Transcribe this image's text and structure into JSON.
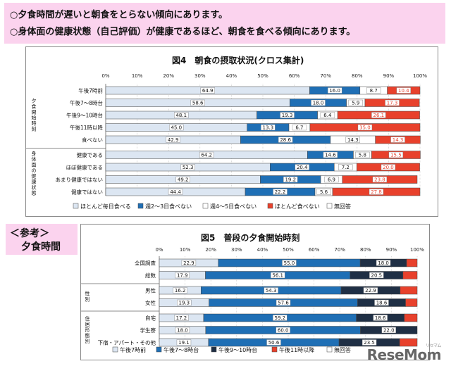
{
  "header": {
    "line1": "○夕食時間が遅いと朝食をとらない傾向にあります。",
    "line2": "○身体面の健康状態（自己評価）が健康であるほど、朝食を食べる傾向にあります。"
  },
  "reference": {
    "line1": "＜参考＞",
    "line2": "夕食時間"
  },
  "watermark": "ReseMom",
  "chart_data": [
    {
      "type": "bar",
      "orientation": "horizontal-stacked-100",
      "title": "図4　朝食の摂取状況(クロス集計)",
      "xlim": [
        0,
        100
      ],
      "xticks": [
        "0%",
        "10%",
        "20%",
        "30%",
        "40%",
        "50%",
        "60%",
        "70%",
        "80%",
        "90%",
        "100%"
      ],
      "groups": [
        {
          "label": "夕食開始時刻",
          "rows": [
            0,
            1,
            2,
            3,
            4
          ]
        },
        {
          "label": "身体面の健康状態",
          "rows": [
            5,
            6,
            7,
            8
          ]
        }
      ],
      "categories": [
        "午後7時前",
        "午後7～8時台",
        "午後9～10時台",
        "午後11時以降",
        "食べない",
        "健康である",
        "ほぼ健康である",
        "あまり健康ではない",
        "健康ではない"
      ],
      "series": [
        {
          "name": "ほとんど毎日食べる",
          "color": "#dce6f2",
          "values": [
            64.9,
            58.6,
            48.1,
            45.0,
            42.9,
            64.2,
            52.3,
            49.2,
            44.4
          ]
        },
        {
          "name": "週2～3日食べない",
          "color": "#1f6fb5",
          "values": [
            16.0,
            18.0,
            19.3,
            13.3,
            28.6,
            14.6,
            20.4,
            19.2,
            22.2
          ]
        },
        {
          "name": "週4～5日食べない",
          "color": "#ffffff",
          "values": [
            8.7,
            5.9,
            6.4,
            6.7,
            14.3,
            5.8,
            7.2,
            6.9,
            5.6
          ]
        },
        {
          "name": "ほとんど食べない",
          "color": "#e8412c",
          "values": [
            10.4,
            17.3,
            26.1,
            35.0,
            14.3,
            15.5,
            20.0,
            23.8,
            27.8
          ]
        },
        {
          "name": "無回答",
          "color": "#ffffff",
          "values": [
            0,
            0,
            0,
            0,
            0,
            0,
            0,
            0,
            0
          ]
        }
      ]
    },
    {
      "type": "bar",
      "orientation": "horizontal-stacked-100",
      "title": "図5　普段の夕食開始時刻",
      "xlim": [
        0,
        100
      ],
      "xticks": [
        "0%",
        "10%",
        "20%",
        "30%",
        "40%",
        "50%",
        "60%",
        "70%",
        "80%",
        "90%",
        "100%"
      ],
      "groups": [
        {
          "label": "",
          "rows": [
            0,
            1
          ]
        },
        {
          "label": "性別",
          "rows": [
            2,
            3
          ]
        },
        {
          "label": "住居形態別",
          "rows": [
            4,
            5,
            6
          ]
        }
      ],
      "categories": [
        "全国調査",
        "総数",
        "男性",
        "女性",
        "自宅",
        "学生寮",
        "下宿・アパート・その他"
      ],
      "series": [
        {
          "name": "午後7時前",
          "color": "#dce6f2",
          "values": [
            22.9,
            17.9,
            16.2,
            19.3,
            17.2,
            18.0,
            19.1
          ]
        },
        {
          "name": "午後7～8時台",
          "color": "#1f6fb5",
          "values": [
            55.0,
            56.1,
            54.3,
            57.6,
            59.2,
            60.0,
            50.6
          ]
        },
        {
          "name": "午後9～10時台",
          "color": "#1f2f45",
          "values": [
            18.0,
            20.5,
            22.9,
            18.6,
            18.6,
            22.0,
            23.5
          ]
        },
        {
          "name": "午後11時以降",
          "color": "#e8412c",
          "values": [
            4.1,
            5.5,
            6.6,
            4.5,
            5.0,
            0,
            6.8
          ]
        }
      ],
      "legend_extra": "無回答"
    }
  ]
}
